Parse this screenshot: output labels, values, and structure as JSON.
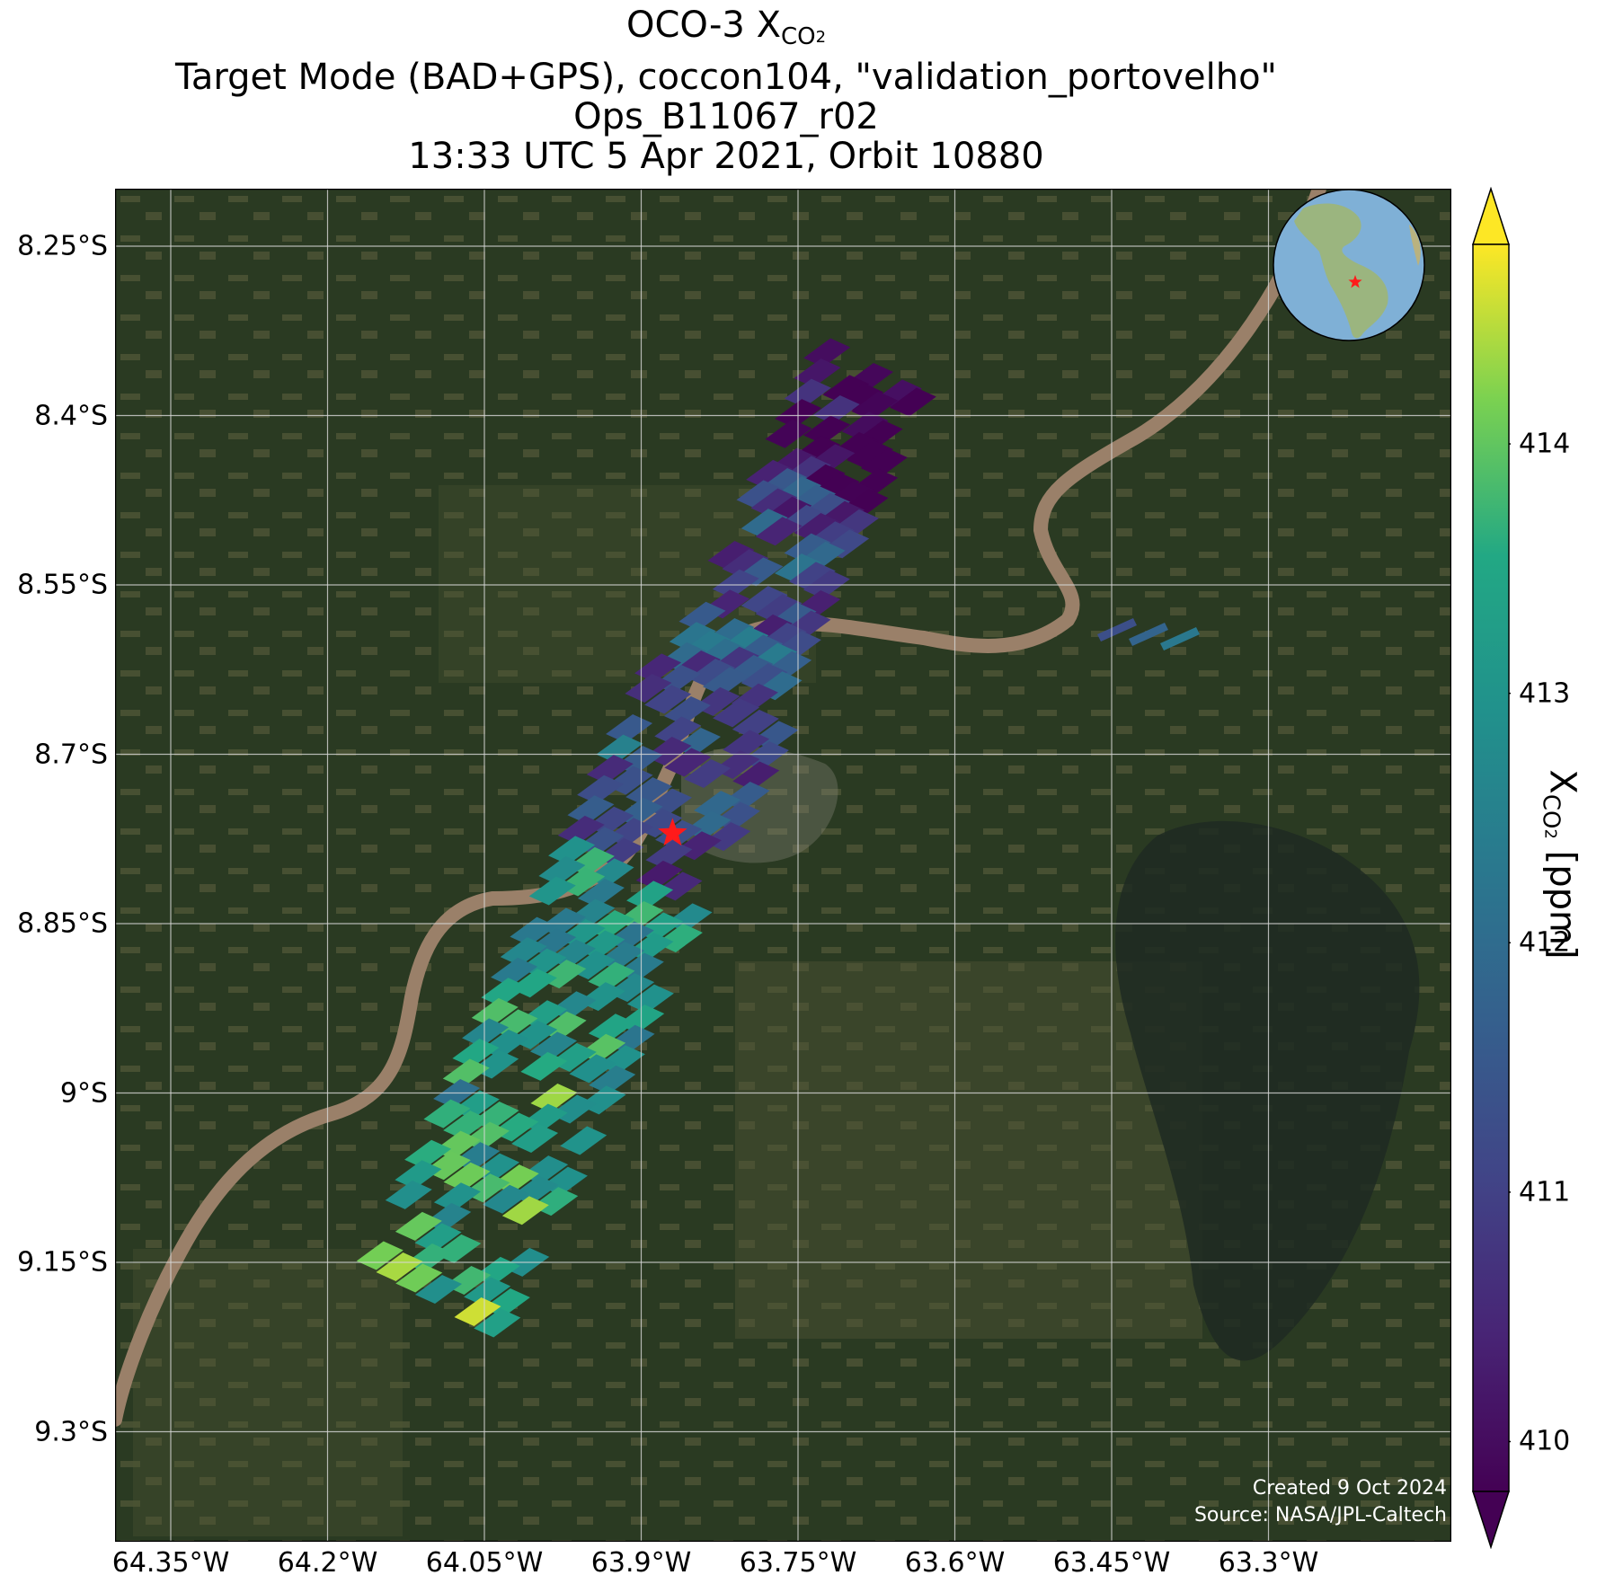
{
  "title": {
    "line1_prefix": "OCO-3 X",
    "line1_sub": "CO",
    "line1_subsub": "2",
    "line2": "Target Mode (BAD+GPS), coccon104, \"validation_portovelho\"",
    "line3": "Ops_B11067_r02",
    "line4": "13:33 UTC 5 Apr 2021, Orbit 10880"
  },
  "map": {
    "lat_ticks": [
      {
        "label": "8.25°S",
        "lat": -8.25
      },
      {
        "label": "8.4°S",
        "lat": -8.4
      },
      {
        "label": "8.55°S",
        "lat": -8.55
      },
      {
        "label": "8.7°S",
        "lat": -8.7
      },
      {
        "label": "8.85°S",
        "lat": -8.85
      },
      {
        "label": "9°S",
        "lat": -9.0
      },
      {
        "label": "9.15°S",
        "lat": -9.15
      },
      {
        "label": "9.3°S",
        "lat": -9.3
      }
    ],
    "lon_ticks": [
      {
        "label": "64.35°W",
        "lon": -64.35
      },
      {
        "label": "64.2°W",
        "lon": -64.2
      },
      {
        "label": "64.05°W",
        "lon": -64.05
      },
      {
        "label": "63.9°W",
        "lon": -63.9
      },
      {
        "label": "63.75°W",
        "lon": -63.75
      },
      {
        "label": "63.6°W",
        "lon": -63.6
      },
      {
        "label": "63.45°W",
        "lon": -63.45
      },
      {
        "label": "63.3°W",
        "lon": -63.3
      }
    ],
    "target_site": {
      "lat": -8.77,
      "lon": -63.87,
      "marker": "red-star"
    },
    "credit_created": "Created 9 Oct 2024",
    "credit_source": "Source: NASA/JPL-Caltech"
  },
  "colorbar": {
    "label_prefix": "X",
    "label_sub": "CO",
    "label_subsub": "2",
    "label_suffix": " [ppm]",
    "colormap": "viridis",
    "range": [
      409.8,
      414.8
    ],
    "ticks": [
      {
        "label": "410",
        "value": 410
      },
      {
        "label": "411",
        "value": 411
      },
      {
        "label": "412",
        "value": 412
      },
      {
        "label": "413",
        "value": 413
      },
      {
        "label": "414",
        "value": 414
      }
    ],
    "extend": "both"
  },
  "inset_globe": {
    "marker": "red-star",
    "region": "South America"
  },
  "colors": {
    "forest": "#2a3a22",
    "river": "#9a8069",
    "grid": "#d8d8d8",
    "star": "#ff1a1a"
  }
}
